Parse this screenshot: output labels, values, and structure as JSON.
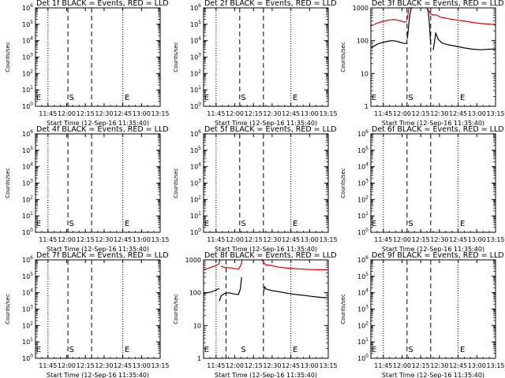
{
  "chart_data": [
    {
      "type": "line",
      "title": "Det 1f BLACK = Events, RED = LLD",
      "ylabel": "Counts/sec",
      "xlabel": "Start Time (12-Sep-16 11:35:40)",
      "x_tick_labels": [
        "11:45",
        "12:00",
        "12:15",
        "12:30",
        "12:45",
        "13:00",
        "13:15"
      ],
      "x_tick_values_min": [
        10,
        25,
        40,
        55,
        70,
        85,
        100
      ],
      "xlim_min": [
        0,
        100
      ],
      "y_scale": "log",
      "ylim": [
        1,
        1000000
      ],
      "y_tick_labels": [
        "10^0",
        "10^1",
        "10^2",
        "10^3",
        "10^4",
        "10^5",
        "10^6"
      ],
      "y_tick_values": [
        1,
        10,
        100,
        1000,
        10000,
        100000,
        1000000
      ],
      "dotted_lines_min": [
        10,
        70
      ],
      "dashed_lines_min": [
        26,
        45
      ],
      "markers": [
        {
          "label": "E",
          "x_min": 0.5
        },
        {
          "label": "S",
          "x_min": 27
        },
        {
          "label": "E",
          "x_min": 71.5
        }
      ],
      "series": []
    },
    {
      "type": "line",
      "title": "Det 2f BLACK = Events, RED = LLD",
      "ylabel": "Counts/sec",
      "xlabel": "Start Time (12-Sep-16 11:35:40)",
      "x_tick_labels": [
        "11:45",
        "12:00",
        "12:15",
        "12:30",
        "12:45",
        "13:00",
        "13:15"
      ],
      "x_tick_values_min": [
        10,
        25,
        40,
        55,
        70,
        85,
        100
      ],
      "xlim_min": [
        0,
        100
      ],
      "y_scale": "log",
      "ylim": [
        1,
        1000000
      ],
      "y_tick_labels": [
        "10^0",
        "10^1",
        "10^2",
        "10^3",
        "10^4",
        "10^5",
        "10^6"
      ],
      "y_tick_values": [
        1,
        10,
        100,
        1000,
        10000,
        100000,
        1000000
      ],
      "dotted_lines_min": [
        10,
        70
      ],
      "dashed_lines_min": [
        29,
        48
      ],
      "markers": [
        {
          "label": "E",
          "x_min": 0.5
        },
        {
          "label": "S",
          "x_min": 30
        },
        {
          "label": "E",
          "x_min": 71.5
        }
      ],
      "series": []
    },
    {
      "type": "line",
      "title": "Det 3f BLACK = Events, RED = LLD",
      "ylabel": "Counts/sec",
      "xlabel": "Start Time (12-Sep-16 11:35:40)",
      "x_tick_labels": [
        "11:45",
        "12:00",
        "12:15",
        "12:30",
        "12:45",
        "13:00",
        "13:15"
      ],
      "x_tick_values_min": [
        10,
        25,
        40,
        55,
        70,
        85,
        100
      ],
      "xlim_min": [
        0,
        100
      ],
      "y_scale": "log",
      "ylim": [
        1,
        1000
      ],
      "y_tick_labels": [
        "1",
        "10",
        "100",
        "1000"
      ],
      "y_tick_values": [
        1,
        10,
        100,
        1000
      ],
      "dotted_lines_min": [
        10,
        70
      ],
      "dashed_lines_min": [
        29,
        48
      ],
      "markers": [
        {
          "label": "E",
          "x_min": 0.5
        },
        {
          "label": "S",
          "x_min": 30
        },
        {
          "label": "E",
          "x_min": 71.5
        }
      ],
      "series": [
        {
          "name": "Events",
          "color": "#000000",
          "segments": [
            [
              [
                0,
                60
              ],
              [
                5,
                78
              ],
              [
                10,
                90
              ],
              [
                15,
                98
              ],
              [
                18,
                100
              ],
              [
                21,
                96
              ],
              [
                24,
                88
              ],
              [
                27,
                82
              ],
              [
                29,
                84
              ]
            ],
            [
              [
                29.3,
                115
              ],
              [
                30.5,
                350
              ],
              [
                31.5,
                700
              ],
              [
                32.5,
                1000
              ],
              [
                33,
                1000
              ]
            ],
            [
              [
                45,
                1000
              ],
              [
                46,
                800
              ],
              [
                47,
                300
              ],
              [
                48,
                75
              ]
            ],
            [
              [
                50,
                52
              ],
              [
                52,
                170
              ],
              [
                54,
                110
              ],
              [
                57,
                85
              ],
              [
                62,
                75
              ],
              [
                68,
                68
              ],
              [
                75,
                60
              ],
              [
                82,
                55
              ],
              [
                88,
                53
              ],
              [
                95,
                55
              ],
              [
                100,
                55
              ]
            ]
          ]
        },
        {
          "name": "LLD",
          "color": "#dd0000",
          "segments": [
            [
              [
                0,
                280
              ],
              [
                5,
                340
              ],
              [
                10,
                390
              ],
              [
                15,
                430
              ],
              [
                18,
                440
              ],
              [
                21,
                430
              ],
              [
                24,
                400
              ],
              [
                27,
                370
              ],
              [
                29,
                380
              ]
            ],
            [
              [
                29.3,
                460
              ],
              [
                30.5,
                1000
              ],
              [
                33,
                1000
              ]
            ],
            [
              [
                45,
                1000
              ],
              [
                46,
                880
              ],
              [
                48,
                650
              ],
              [
                50,
                600
              ],
              [
                52,
                620
              ],
              [
                56,
                520
              ],
              [
                62,
                470
              ],
              [
                70,
                420
              ],
              [
                78,
                380
              ],
              [
                86,
                340
              ],
              [
                95,
                320
              ],
              [
                100,
                310
              ]
            ]
          ]
        }
      ]
    },
    {
      "type": "line",
      "title": "Det 4f BLACK = Events, RED = LLD",
      "ylabel": "Counts/sec",
      "xlabel": "Start Time (12-Sep-16 11:35:40)",
      "x_tick_labels": [
        "11:45",
        "12:00",
        "12:15",
        "12:30",
        "12:45",
        "13:00",
        "13:15"
      ],
      "x_tick_values_min": [
        10,
        25,
        40,
        55,
        70,
        85,
        100
      ],
      "xlim_min": [
        0,
        100
      ],
      "y_scale": "log",
      "ylim": [
        1,
        1000000
      ],
      "y_tick_labels": [
        "10^0",
        "10^1",
        "10^2",
        "10^3",
        "10^4",
        "10^5",
        "10^6"
      ],
      "y_tick_values": [
        1,
        10,
        100,
        1000,
        10000,
        100000,
        1000000
      ],
      "dotted_lines_min": [
        10,
        70
      ],
      "dashed_lines_min": [
        26,
        45
      ],
      "markers": [
        {
          "label": "E",
          "x_min": 0.5
        },
        {
          "label": "S",
          "x_min": 27
        },
        {
          "label": "E",
          "x_min": 71.5
        }
      ],
      "series": []
    },
    {
      "type": "line",
      "title": "Det 5f BLACK = Events, RED = LLD",
      "ylabel": "Counts/sec",
      "xlabel": "Start Time (12-Sep-16 11:35:40)",
      "x_tick_labels": [
        "11:45",
        "12:00",
        "12:15",
        "12:30",
        "12:45",
        "13:00",
        "13:15"
      ],
      "x_tick_values_min": [
        10,
        25,
        40,
        55,
        70,
        85,
        100
      ],
      "xlim_min": [
        0,
        100
      ],
      "y_scale": "log",
      "ylim": [
        1,
        1000000
      ],
      "y_tick_labels": [
        "10^0",
        "10^1",
        "10^2",
        "10^3",
        "10^4",
        "10^5",
        "10^6"
      ],
      "y_tick_values": [
        1,
        10,
        100,
        1000,
        10000,
        100000,
        1000000
      ],
      "dotted_lines_min": [
        10,
        70
      ],
      "dashed_lines_min": [
        29,
        48
      ],
      "markers": [
        {
          "label": "E",
          "x_min": 0.5
        },
        {
          "label": "S",
          "x_min": 30
        },
        {
          "label": "E",
          "x_min": 71.5
        }
      ],
      "series": []
    },
    {
      "type": "line",
      "title": "Det 6f BLACK = Events, RED = LLD",
      "ylabel": "Counts/sec",
      "xlabel": "Start Time (12-Sep-16 11:35:40)",
      "x_tick_labels": [
        "11:45",
        "12:00",
        "12:15",
        "12:30",
        "12:45",
        "13:00",
        "13:15"
      ],
      "x_tick_values_min": [
        10,
        25,
        40,
        55,
        70,
        85,
        100
      ],
      "xlim_min": [
        0,
        100
      ],
      "y_scale": "log",
      "ylim": [
        1,
        1000000
      ],
      "y_tick_labels": [
        "10^0",
        "10^1",
        "10^2",
        "10^3",
        "10^4",
        "10^5",
        "10^6"
      ],
      "y_tick_values": [
        1,
        10,
        100,
        1000,
        10000,
        100000,
        1000000
      ],
      "dotted_lines_min": [
        10,
        70
      ],
      "dashed_lines_min": [
        29,
        48
      ],
      "markers": [
        {
          "label": "E",
          "x_min": 0.5
        },
        {
          "label": "S",
          "x_min": 30
        },
        {
          "label": "E",
          "x_min": 71.5
        }
      ],
      "series": []
    },
    {
      "type": "line",
      "title": "Det 7f BLACK = Events, RED = LLD",
      "ylabel": "Counts/sec",
      "xlabel": "Start Time (12-Sep-16 11:35:40)",
      "x_tick_labels": [
        "11:45",
        "12:00",
        "12:15",
        "12:30",
        "12:45",
        "13:00",
        "13:15"
      ],
      "x_tick_values_min": [
        10,
        25,
        40,
        55,
        70,
        85,
        100
      ],
      "xlim_min": [
        0,
        100
      ],
      "y_scale": "log",
      "ylim": [
        1,
        1000000
      ],
      "y_tick_labels": [
        "10^0",
        "10^1",
        "10^2",
        "10^3",
        "10^4",
        "10^5",
        "10^6"
      ],
      "y_tick_values": [
        1,
        10,
        100,
        1000,
        10000,
        100000,
        1000000
      ],
      "dotted_lines_min": [
        10,
        70
      ],
      "dashed_lines_min": [
        26,
        45
      ],
      "markers": [
        {
          "label": "E",
          "x_min": 0.5
        },
        {
          "label": "S",
          "x_min": 27
        },
        {
          "label": "E",
          "x_min": 71.5
        }
      ],
      "series": []
    },
    {
      "type": "line",
      "title": "Det 8f BLACK = Events, RED = LLD",
      "ylabel": "Counts/sec",
      "xlabel": "Start Time (12-Sep-16 11:35:40)",
      "x_tick_labels": [
        "11:45",
        "12:00",
        "12:15",
        "12:30",
        "12:45",
        "13:00",
        "13:15"
      ],
      "x_tick_values_min": [
        10,
        25,
        40,
        55,
        70,
        85,
        100
      ],
      "xlim_min": [
        0,
        100
      ],
      "y_scale": "log",
      "ylim": [
        1,
        1000
      ],
      "y_tick_labels": [
        "1",
        "10",
        "100",
        "1000"
      ],
      "y_tick_values": [
        1,
        10,
        100,
        1000
      ],
      "dotted_lines_min": [
        10,
        70
      ],
      "dashed_lines_min": [
        18,
        48
      ],
      "markers": [
        {
          "label": "E",
          "x_min": 0.5
        },
        {
          "label": "S",
          "x_min": 30
        },
        {
          "label": "E",
          "x_min": 71.5
        }
      ],
      "series": [
        {
          "name": "Events",
          "color": "#000000",
          "segments": [
            [
              [
                0,
                95
              ],
              [
                3,
                100
              ],
              [
                6,
                105
              ],
              [
                9,
                115
              ],
              [
                11,
                125
              ],
              [
                12.5,
                135
              ]
            ],
            [
              [
                12.7,
                55
              ],
              [
                14,
                80
              ],
              [
                17,
                95
              ],
              [
                20,
                100
              ],
              [
                24,
                92
              ],
              [
                28,
                88
              ],
              [
                29.5,
                130
              ],
              [
                30.5,
                300
              ]
            ],
            [
              [
                48,
                100
              ],
              [
                49,
                150
              ],
              [
                50,
                130
              ],
              [
                55,
                115
              ],
              [
                62,
                105
              ],
              [
                70,
                92
              ],
              [
                78,
                85
              ],
              [
                86,
                78
              ],
              [
                94,
                72
              ],
              [
                100,
                70
              ]
            ]
          ]
        },
        {
          "name": "LLD",
          "color": "#dd0000",
          "segments": [
            [
              [
                0,
                500
              ],
              [
                3,
                540
              ],
              [
                6,
                590
              ],
              [
                9,
                650
              ],
              [
                11,
                700
              ],
              [
                12.5,
                780
              ],
              [
                13,
                1000
              ]
            ],
            [
              [
                14,
                650
              ],
              [
                16,
                600
              ],
              [
                19,
                580
              ],
              [
                22,
                570
              ],
              [
                25,
                540
              ],
              [
                28,
                520
              ],
              [
                30,
                700
              ],
              [
                31,
                1000
              ]
            ],
            [
              [
                45,
                1000
              ],
              [
                47,
                1000
              ],
              [
                48.5,
                800
              ],
              [
                50,
                700
              ],
              [
                54,
                680
              ],
              [
                60,
                600
              ],
              [
                68,
                560
              ],
              [
                76,
                530
              ],
              [
                85,
                510
              ],
              [
                94,
                500
              ],
              [
                100,
                500
              ]
            ]
          ]
        }
      ]
    },
    {
      "type": "line",
      "title": "Det 9f BLACK = Events, RED = LLD",
      "ylabel": "Counts/sec",
      "xlabel": "Start Time (12-Sep-16 11:35:40)",
      "x_tick_labels": [
        "11:45",
        "12:00",
        "12:15",
        "12:30",
        "12:45",
        "13:00",
        "13:15"
      ],
      "x_tick_values_min": [
        10,
        25,
        40,
        55,
        70,
        85,
        100
      ],
      "xlim_min": [
        0,
        100
      ],
      "y_scale": "log",
      "ylim": [
        1,
        1000000
      ],
      "y_tick_labels": [
        "10^0",
        "10^1",
        "10^2",
        "10^3",
        "10^4",
        "10^5",
        "10^6"
      ],
      "y_tick_values": [
        1,
        10,
        100,
        1000,
        10000,
        100000,
        1000000
      ],
      "dotted_lines_min": [
        10,
        70
      ],
      "dashed_lines_min": [
        29,
        48
      ],
      "markers": [
        {
          "label": "E",
          "x_min": 0.5
        },
        {
          "label": "S",
          "x_min": 30
        },
        {
          "label": "E",
          "x_min": 71.5
        }
      ],
      "series": []
    }
  ]
}
